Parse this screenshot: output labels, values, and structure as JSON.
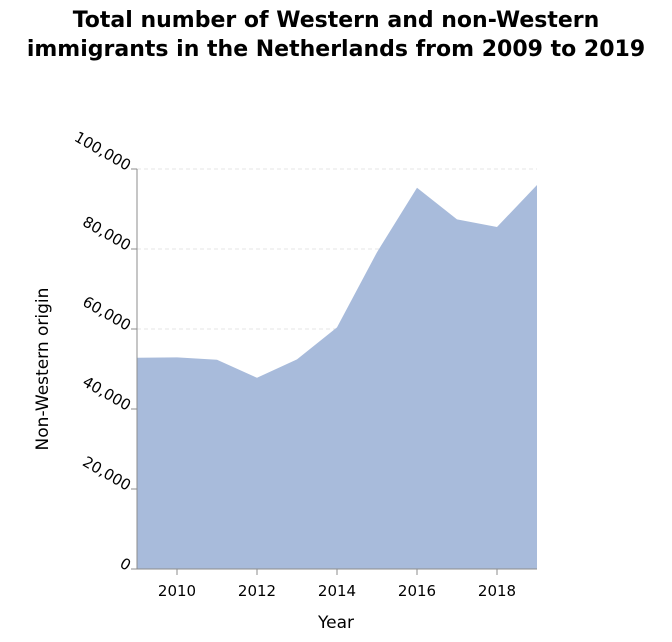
{
  "chart_data": {
    "type": "area",
    "title": "Total number of Western and non-Western immigrants in the Netherlands from 2009 to 2019",
    "xlabel": "Year",
    "ylabel": "Non-Western origin",
    "x": [
      2009,
      2010,
      2011,
      2012,
      2013,
      2014,
      2015,
      2016,
      2017,
      2018,
      2019
    ],
    "series": [
      {
        "name": "",
        "values": [
          52800,
          52900,
          52300,
          47800,
          52400,
          60400,
          79200,
          95300,
          87400,
          85500,
          96000
        ]
      }
    ],
    "xlim": [
      2009,
      2019
    ],
    "ylim": [
      0,
      100000
    ],
    "xticks": [
      2010,
      2012,
      2014,
      2016,
      2018
    ],
    "xtick_labels": [
      "2010",
      "2012",
      "2014",
      "2016",
      "2018"
    ],
    "yticks": [
      0,
      20000,
      40000,
      60000,
      80000,
      100000
    ],
    "ytick_labels": [
      "0",
      "20,000",
      "40,000",
      "60,000",
      "80,000",
      "100,000"
    ],
    "grid": true,
    "legend": "none",
    "fill_color": "#a8bbdb",
    "grid_color": "#e4e4e4",
    "axis_color": "#8c8c8c"
  }
}
